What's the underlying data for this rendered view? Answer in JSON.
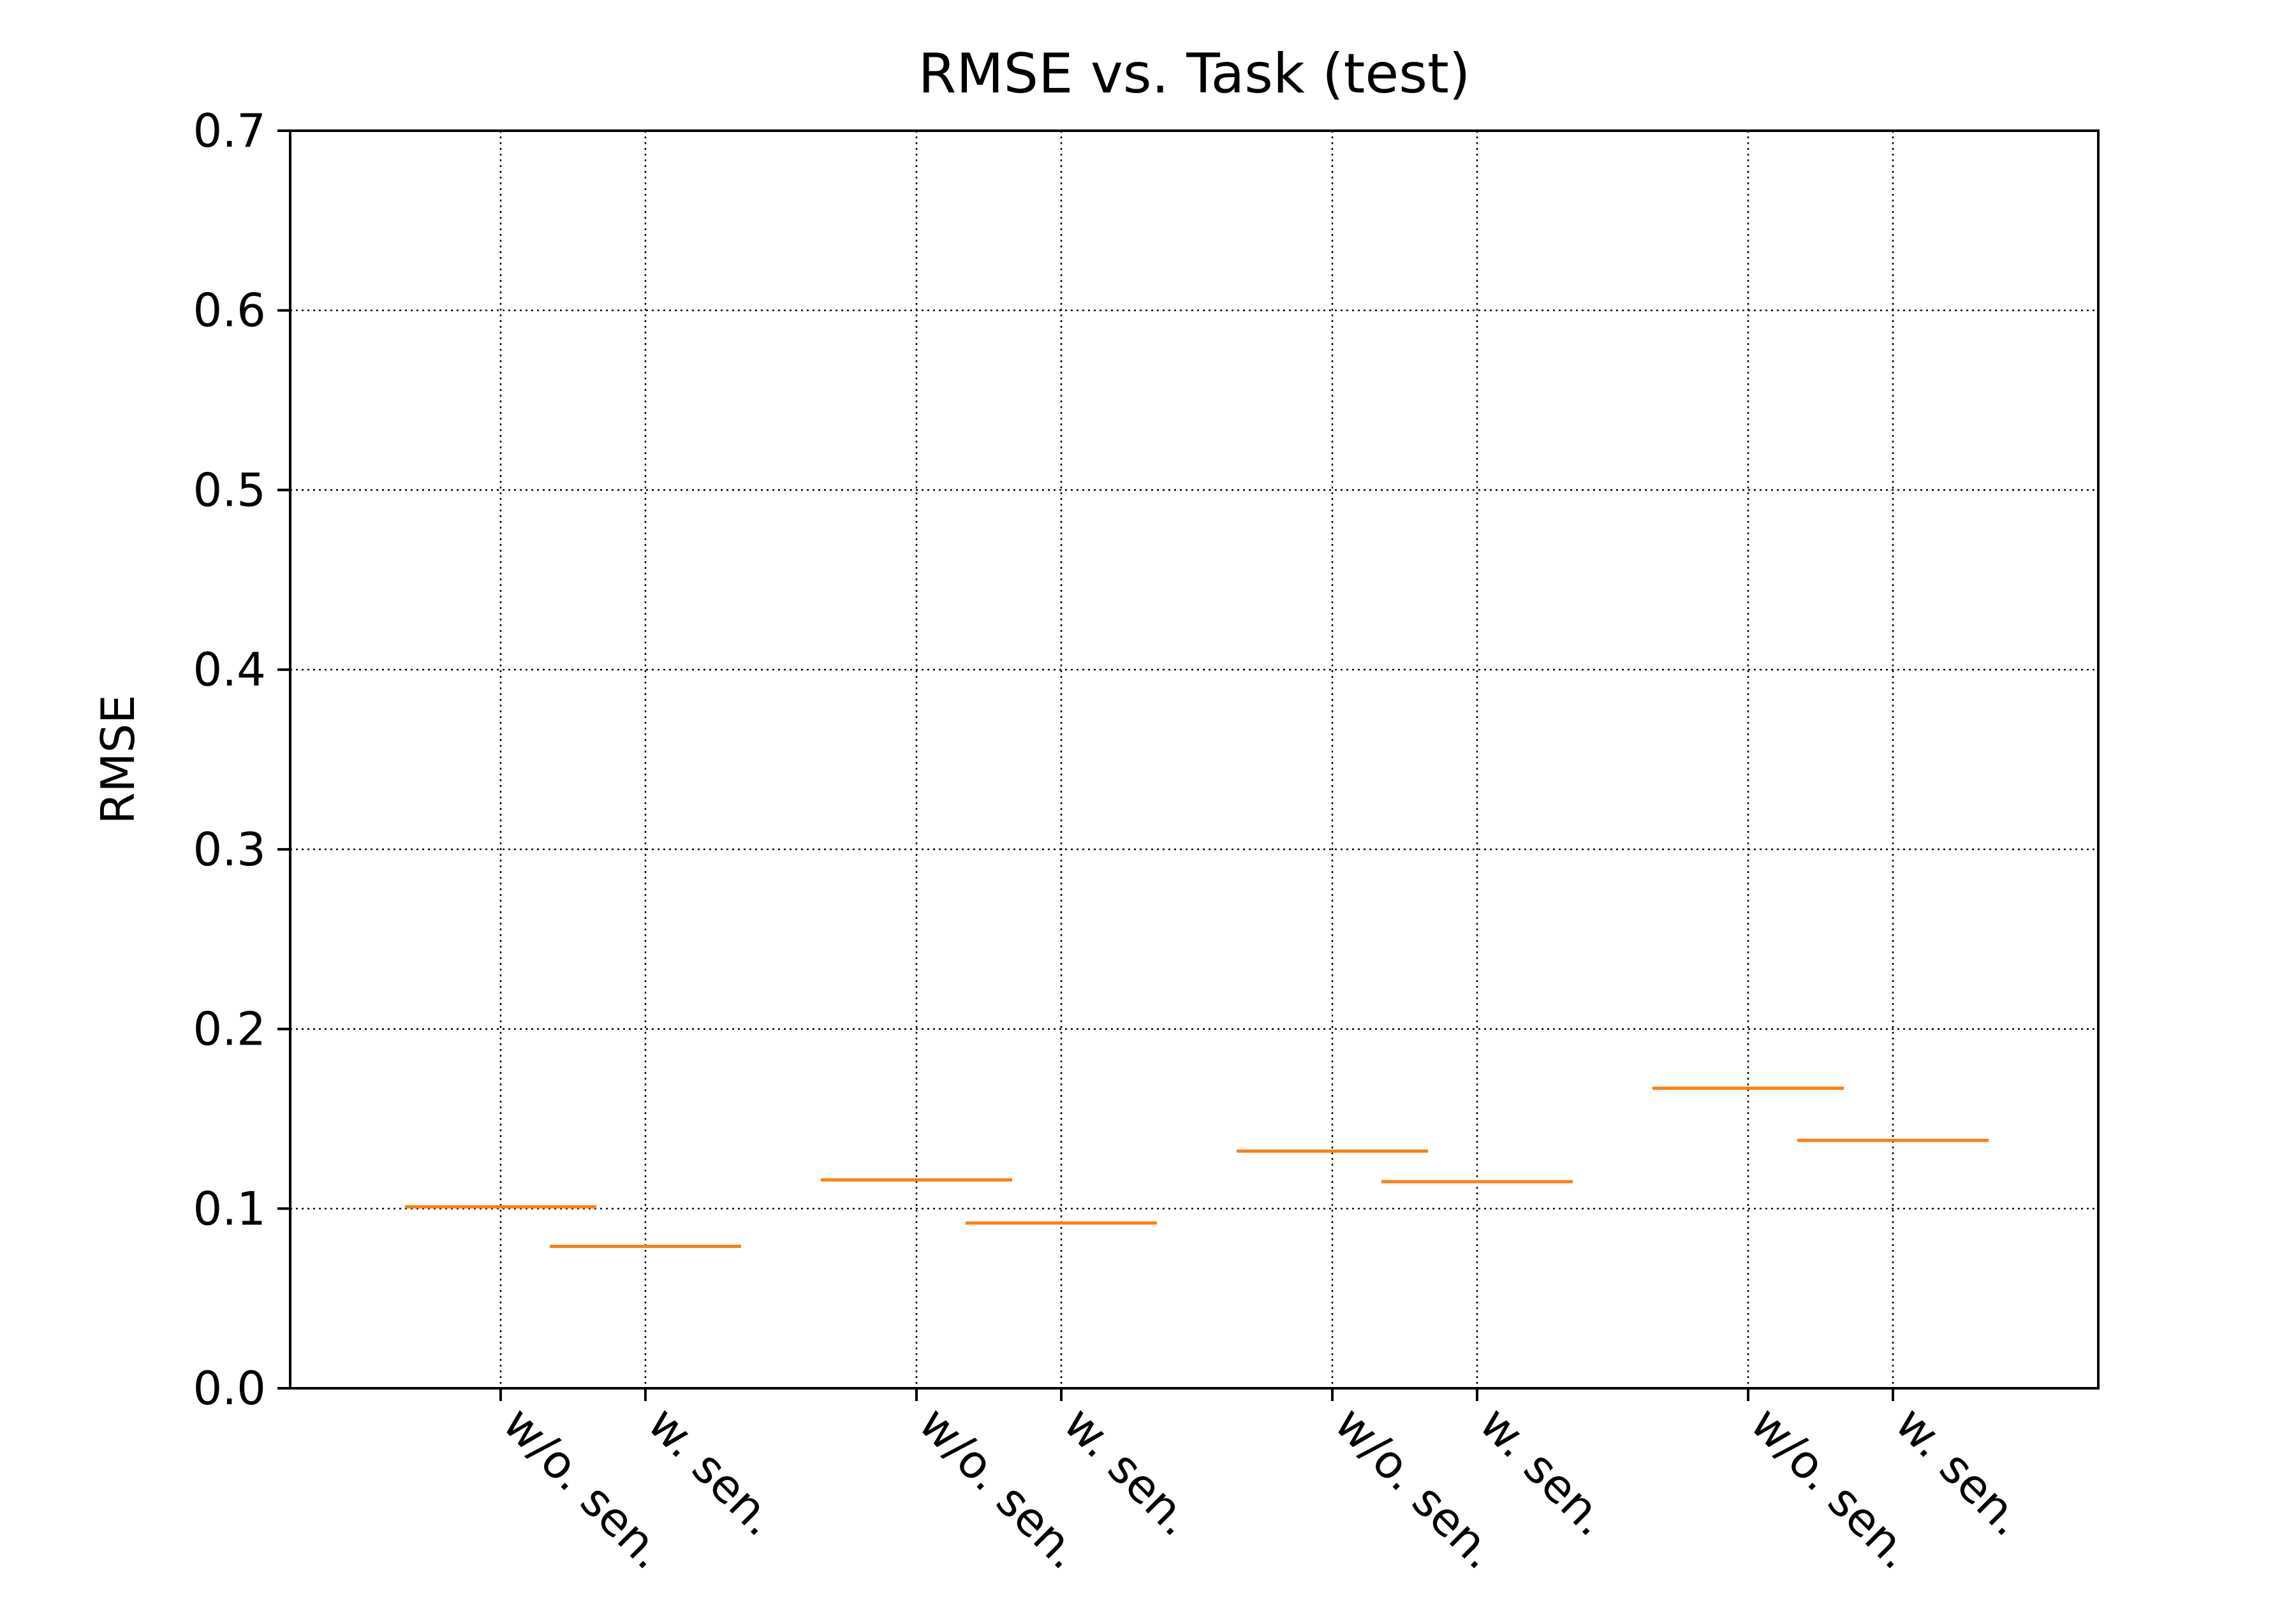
{
  "chart_data": {
    "type": "box",
    "title": "RMSE vs. Task (test)",
    "xlabel": "",
    "ylabel": "RMSE",
    "ylim": [
      0.0,
      0.7
    ],
    "yticks": [
      "0.0",
      "0.1",
      "0.2",
      "0.3",
      "0.4",
      "0.5",
      "0.6",
      "0.7"
    ],
    "grid": true,
    "categories": [
      "w/o. sen.",
      "w. sen.",
      "w/o. sen.",
      "w. sen.",
      "w/o. sen.",
      "w. sen.",
      "w/o. sen.",
      "w. sen."
    ],
    "values": [
      0.101,
      0.079,
      0.116,
      0.092,
      0.132,
      0.115,
      0.167,
      0.138
    ],
    "median_color": "#ff7f0e"
  }
}
